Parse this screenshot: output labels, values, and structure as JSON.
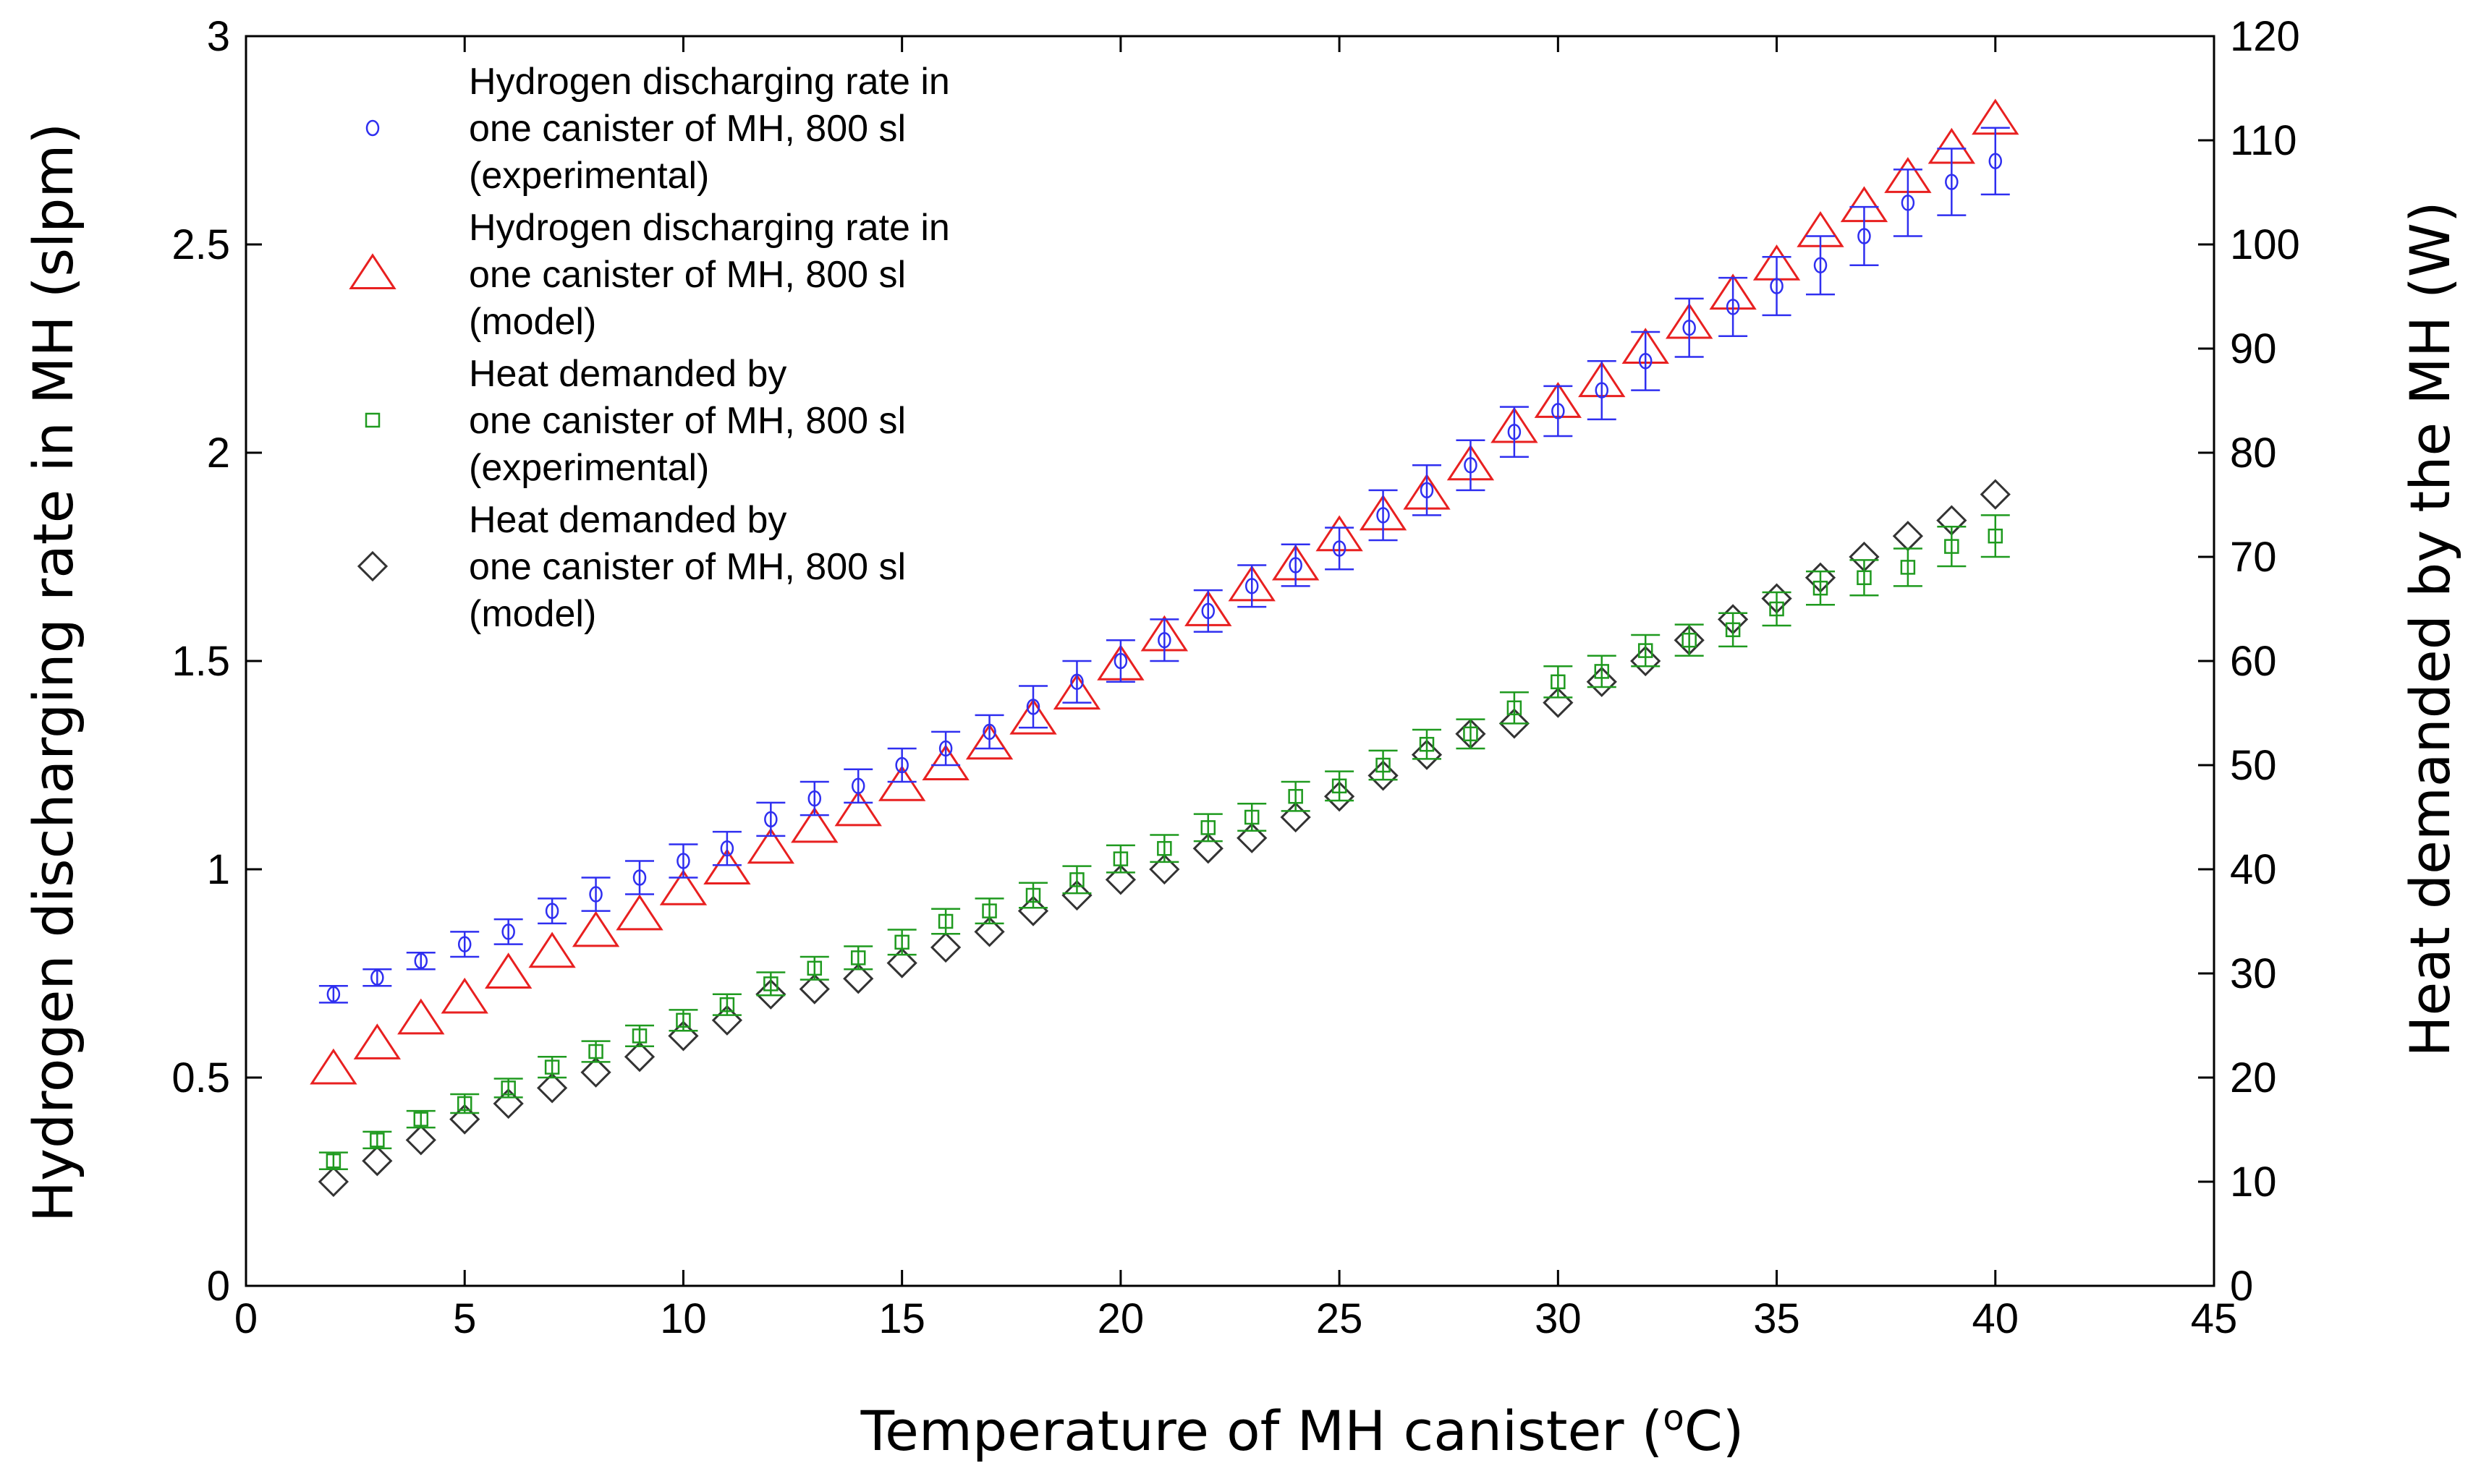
{
  "chart_data": {
    "type": "scatter",
    "xlabel": "Temperature of MH canister (",
    "xlabel_sup": "o",
    "xlabel_end": "C)",
    "ylabel": "Hydrogen discharging rate in MH (slpm)",
    "ylabel_right": "Heat demanded by the MH (W)",
    "xlim": [
      0,
      45
    ],
    "ylim": [
      0,
      3
    ],
    "ylim_right": [
      0,
      120
    ],
    "x_ticks": [
      0,
      5,
      10,
      15,
      20,
      25,
      30,
      35,
      40,
      45
    ],
    "y_ticks": [
      0,
      0.5,
      1,
      1.5,
      2,
      2.5,
      3
    ],
    "y_tick_labels": [
      "0",
      "0.5",
      "1",
      "1.5",
      "2",
      "2.5",
      "3"
    ],
    "y_ticks_right": [
      0,
      10,
      20,
      30,
      40,
      50,
      60,
      70,
      80,
      90,
      100,
      110,
      120
    ],
    "x": [
      2,
      3,
      4,
      5,
      6,
      7,
      8,
      9,
      10,
      11,
      12,
      13,
      14,
      15,
      16,
      17,
      18,
      19,
      20,
      21,
      22,
      23,
      24,
      25,
      26,
      27,
      28,
      29,
      30,
      31,
      32,
      33,
      34,
      35,
      36,
      37,
      38,
      39,
      40
    ],
    "series": [
      {
        "name": "Hydrogen discharging rate in one canister of MH, 800 sl (experimental)",
        "legend_lines": [
          "Hydrogen discharging rate in",
          "one canister of MH, 800 sl",
          "(experimental)"
        ],
        "axis": "left",
        "marker": "circle",
        "color": "#2f2ff0",
        "values": [
          0.7,
          0.74,
          0.78,
          0.82,
          0.85,
          0.9,
          0.94,
          0.98,
          1.02,
          1.05,
          1.12,
          1.17,
          1.2,
          1.25,
          1.29,
          1.33,
          1.39,
          1.45,
          1.5,
          1.55,
          1.62,
          1.68,
          1.73,
          1.77,
          1.85,
          1.91,
          1.97,
          2.05,
          2.1,
          2.15,
          2.22,
          2.3,
          2.35,
          2.4,
          2.45,
          2.52,
          2.6,
          2.65,
          2.7
        ],
        "errors": [
          0.02,
          0.02,
          0.02,
          0.03,
          0.03,
          0.03,
          0.04,
          0.04,
          0.04,
          0.04,
          0.04,
          0.04,
          0.04,
          0.04,
          0.04,
          0.04,
          0.05,
          0.05,
          0.05,
          0.05,
          0.05,
          0.05,
          0.05,
          0.05,
          0.06,
          0.06,
          0.06,
          0.06,
          0.06,
          0.07,
          0.07,
          0.07,
          0.07,
          0.07,
          0.07,
          0.07,
          0.08,
          0.08,
          0.08
        ]
      },
      {
        "name": "Hydrogen discharging rate in one canister of MH, 800 sl (model)",
        "legend_lines": [
          "Hydrogen discharging rate in",
          "one canister of MH, 800 sl",
          "(model)"
        ],
        "axis": "left",
        "marker": "triangle",
        "color": "#e82020",
        "values": [
          0.52,
          0.58,
          0.64,
          0.69,
          0.75,
          0.8,
          0.85,
          0.89,
          0.95,
          1.0,
          1.05,
          1.1,
          1.14,
          1.2,
          1.25,
          1.3,
          1.36,
          1.42,
          1.49,
          1.56,
          1.62,
          1.68,
          1.73,
          1.8,
          1.85,
          1.9,
          1.97,
          2.06,
          2.12,
          2.17,
          2.25,
          2.31,
          2.38,
          2.45,
          2.53,
          2.59,
          2.66,
          2.73,
          2.8
        ]
      },
      {
        "name": "Heat demanded by one canister of MH, 800 sl (experimental)",
        "legend_lines": [
          "Heat demanded by",
          "one canister of MH, 800 sl",
          "(experimental)"
        ],
        "axis": "right",
        "marker": "square",
        "color": "#1f9a1f",
        "values": [
          12,
          14,
          16,
          17.5,
          19,
          21,
          22.5,
          24,
          25.5,
          27,
          29,
          30.5,
          31.5,
          33,
          35,
          36,
          37.5,
          39,
          41,
          42,
          44,
          45,
          47,
          48,
          50,
          52,
          53,
          55.5,
          58,
          59,
          61,
          62,
          63,
          65,
          67,
          68,
          69,
          71,
          72
        ],
        "errors": [
          0.8,
          0.8,
          0.8,
          0.9,
          0.9,
          1.0,
          1.0,
          1.0,
          1.0,
          1.0,
          1.1,
          1.1,
          1.1,
          1.2,
          1.2,
          1.2,
          1.2,
          1.3,
          1.3,
          1.3,
          1.3,
          1.3,
          1.4,
          1.4,
          1.4,
          1.4,
          1.4,
          1.5,
          1.5,
          1.5,
          1.5,
          1.5,
          1.6,
          1.6,
          1.6,
          1.7,
          1.8,
          1.9,
          2.0
        ]
      },
      {
        "name": "Heat demanded by one canister of MH, 800 sl (model)",
        "legend_lines": [
          "Heat demanded by",
          "one canister of MH, 800 sl",
          "(model)"
        ],
        "axis": "right",
        "marker": "diamond",
        "color": "#333333",
        "values": [
          10,
          12,
          14,
          16,
          17.5,
          19,
          20.5,
          22,
          24,
          25.5,
          28,
          28.5,
          29.5,
          31,
          32.5,
          34,
          36,
          37.5,
          39,
          40,
          42,
          43,
          45,
          47,
          49,
          51,
          53,
          54,
          56,
          58,
          60,
          62,
          64,
          66,
          68,
          70,
          72,
          73.5,
          76
        ]
      }
    ]
  }
}
